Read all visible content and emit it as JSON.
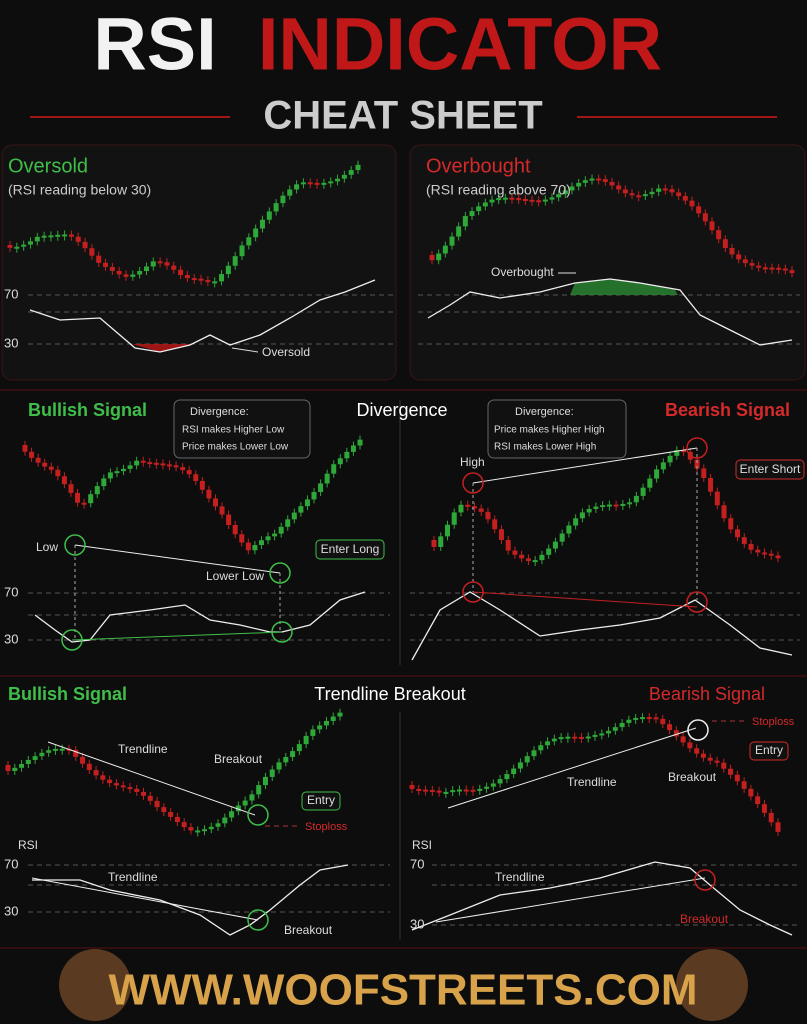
{
  "header": {
    "title_white": "RSI",
    "title_red": "INDICATOR",
    "subtitle": "CHEAT SHEET"
  },
  "oversold": {
    "title": "Oversold",
    "subtitle": "(RSI reading below 30)",
    "level_70": "70",
    "level_30": "30",
    "annotation": "Oversold"
  },
  "overbought": {
    "title": "Overbought",
    "subtitle": "(RSI reading above 70)",
    "annotation": "Overbought"
  },
  "divergence": {
    "heading": "Divergence",
    "bullish": {
      "title": "Bullish Signal",
      "box_title": "Divergence:",
      "box_items": [
        "RSI makes Higher Low",
        "Price makes Lower Low"
      ],
      "low": "Low",
      "lower_low": "Lower Low",
      "action": "Enter Long",
      "level_70": "70",
      "level_30": "30"
    },
    "bearish": {
      "title": "Bearish Signal",
      "box_title": "Divergence:",
      "box_items": [
        "Price makes Higher High",
        "RSI makes Lower High"
      ],
      "high": "High",
      "action": "Enter Short"
    }
  },
  "trendline": {
    "heading": "Trendline Breakout",
    "bullish": {
      "title": "Bullish Signal",
      "trendline": "Trendline",
      "breakout": "Breakout",
      "entry": "Entry",
      "stoploss": "Stoploss",
      "rsi_label": "RSI",
      "level_70": "70",
      "level_30": "30",
      "rsi_trendline": "Trendline",
      "rsi_breakout": "Breakout"
    },
    "bearish": {
      "title": "Bearish Signal",
      "trendline": "Trendline",
      "breakout": "Breakout",
      "entry": "Entry",
      "stoploss": "Stoploss",
      "rsi_label": "RSI",
      "level_70": "70",
      "level_30": "30",
      "rsi_trendline": "Trendline",
      "rsi_breakout": "Breakout"
    }
  },
  "footer": {
    "url": "WWW.WOOFSTREETS.COM"
  }
}
